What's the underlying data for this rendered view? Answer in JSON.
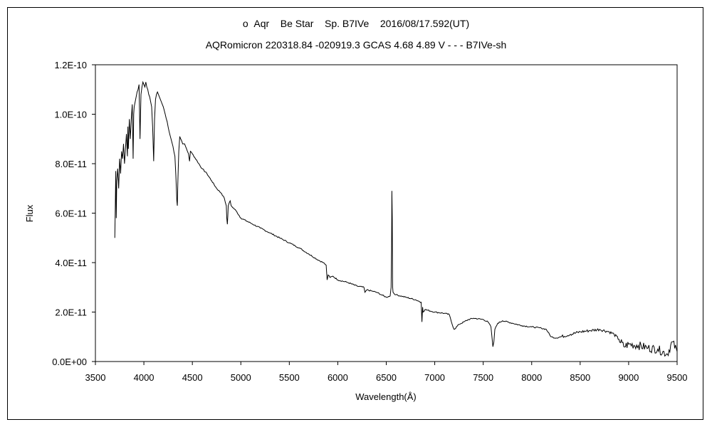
{
  "chart_data": {
    "type": "line",
    "title": "ο  Aqr    Be Star    Sp. B7IVe    2016/08/17.592(UT)",
    "subtitle": "AQRomicron 220318.84 -020919.3 GCAS 4.68 4.89 V - - - B7IVe-sh",
    "xlabel": "Wavelength(Å)",
    "ylabel": "Flux",
    "xlim": [
      3500,
      9500
    ],
    "ylim": [
      0,
      1.2e-10
    ],
    "xticks": [
      "3500",
      "4000",
      "4500",
      "5000",
      "5500",
      "6000",
      "6500",
      "7000",
      "7500",
      "8000",
      "8500",
      "9000",
      "9500"
    ],
    "yticks": [
      "0.0E+00",
      "2.0E-11",
      "4.0E-11",
      "6.0E-11",
      "8.0E-11",
      "1.0E-10",
      "1.2E-10"
    ],
    "grid": false,
    "legend": "none",
    "series": [
      {
        "color": "#000000",
        "x": [
          3700,
          3705,
          3710,
          3715,
          3720,
          3730,
          3740,
          3750,
          3760,
          3770,
          3780,
          3790,
          3800,
          3810,
          3820,
          3830,
          3835,
          3840,
          3850,
          3860,
          3870,
          3880,
          3889,
          3895,
          3900,
          3910,
          3920,
          3930,
          3940,
          3950,
          3960,
          3970,
          3980,
          3990,
          4000,
          4010,
          4020,
          4030,
          4040,
          4050,
          4060,
          4070,
          4080,
          4090,
          4101,
          4110,
          4120,
          4130,
          4140,
          4150,
          4160,
          4170,
          4180,
          4200,
          4220,
          4240,
          4260,
          4280,
          4300,
          4320,
          4330,
          4340,
          4345,
          4350,
          4360,
          4370,
          4380,
          4400,
          4420,
          4440,
          4460,
          4471,
          4480,
          4500,
          4550,
          4600,
          4650,
          4700,
          4750,
          4800,
          4830,
          4850,
          4855,
          4861,
          4866,
          4870,
          4890,
          4900,
          4950,
          5000,
          5100,
          5200,
          5300,
          5400,
          5500,
          5600,
          5700,
          5800,
          5850,
          5880,
          5890,
          5896,
          5900,
          5920,
          5950,
          6000,
          6100,
          6200,
          6270,
          6280,
          6300,
          6400,
          6450,
          6500,
          6540,
          6550,
          6555,
          6558,
          6562,
          6564,
          6566,
          6570,
          6580,
          6600,
          6700,
          6800,
          6860,
          6868,
          6875,
          6880,
          6900,
          7000,
          7100,
          7150,
          7180,
          7200,
          7250,
          7300,
          7350,
          7400,
          7500,
          7550,
          7580,
          7600,
          7610,
          7620,
          7650,
          7700,
          7800,
          7900,
          8000,
          8100,
          8150,
          8200,
          8250,
          8300,
          8400,
          8500,
          8600,
          8700,
          8800,
          8850,
          8900,
          8950,
          9000,
          9100,
          9200,
          9300,
          9400,
          9450,
          9500
        ],
        "y": [
          5e-11,
          6.2e-11,
          7.7e-11,
          5.8e-11,
          7.3e-11,
          7.8e-11,
          7e-11,
          8.2e-11,
          7.6e-11,
          8.5e-11,
          8.2e-11,
          8.8e-11,
          8e-11,
          8.6e-11,
          9.2e-11,
          8.3e-11,
          9.5e-11,
          8.6e-11,
          9.8e-11,
          9e-11,
          9.8e-11,
          1.04e-10,
          8.2e-11,
          1e-10,
          1.03e-10,
          1.05e-10,
          1.07e-10,
          1.09e-10,
          1.1e-10,
          1.12e-10,
          9e-11,
          1.08e-10,
          1.11e-10,
          1.13e-10,
          1.12e-10,
          1.11e-10,
          1.13e-10,
          1.11e-10,
          1.1e-10,
          1.08e-10,
          1.07e-10,
          1.05e-10,
          1.03e-10,
          9.5e-11,
          8.1e-11,
          9.8e-11,
          1.06e-10,
          1.08e-10,
          1.09e-10,
          1.08e-10,
          1.07e-10,
          1.06e-10,
          1.05e-10,
          1.03e-10,
          1e-10,
          9.7e-11,
          9.3e-11,
          9e-11,
          8.7e-11,
          8.3e-11,
          7.5e-11,
          6.5e-11,
          6.3e-11,
          7.2e-11,
          8.5e-11,
          9.1e-11,
          9e-11,
          8.8e-11,
          8.8e-11,
          8.6e-11,
          8.4e-11,
          8.1e-11,
          8.5e-11,
          8.4e-11,
          8.1e-11,
          7.8e-11,
          7.6e-11,
          7.3e-11,
          7e-11,
          6.8e-11,
          6.6e-11,
          6.3e-11,
          5.8e-11,
          5.55e-11,
          5.9e-11,
          6.3e-11,
          6.5e-11,
          6.3e-11,
          6.1e-11,
          5.8e-11,
          5.6e-11,
          5.4e-11,
          5.2e-11,
          5e-11,
          4.8e-11,
          4.6e-11,
          4.35e-11,
          4.1e-11,
          4e-11,
          3.9e-11,
          3.3e-11,
          3.4e-11,
          3.5e-11,
          3.4e-11,
          3.45e-11,
          3.3e-11,
          3.2e-11,
          3.05e-11,
          3e-11,
          2.8e-11,
          2.9e-11,
          2.8e-11,
          2.7e-11,
          2.6e-11,
          2.65e-11,
          3e-11,
          4.5e-11,
          6.9e-11,
          5.8e-11,
          4e-11,
          3e-11,
          2.8e-11,
          2.75e-11,
          2.7e-11,
          2.6e-11,
          2.5e-11,
          2.4e-11,
          1.6e-11,
          2.2e-11,
          2e-11,
          2.1e-11,
          2e-11,
          1.95e-11,
          1.9e-11,
          1.5e-11,
          1.3e-11,
          1.5e-11,
          1.6e-11,
          1.7e-11,
          1.75e-11,
          1.7e-11,
          1.6e-11,
          1.4e-11,
          6e-12,
          8e-12,
          1.3e-11,
          1.55e-11,
          1.65e-11,
          1.55e-11,
          1.45e-11,
          1.4e-11,
          1.35e-11,
          1.3e-11,
          1e-11,
          9.5e-12,
          1e-11,
          1.1e-11,
          1.2e-11,
          1.25e-11,
          1.3e-11,
          1.2e-11,
          1.1e-11,
          9e-12,
          6e-12,
          7e-12,
          6.5e-12,
          5.5e-12,
          5e-12,
          3e-12,
          8e-12,
          4e-12
        ]
      }
    ]
  }
}
